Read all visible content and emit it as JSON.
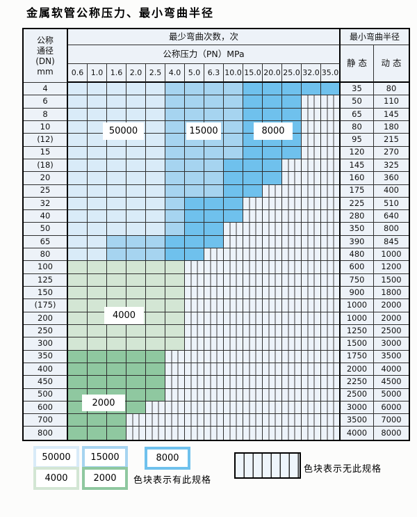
{
  "page_title": "金属软管公称压力、最小弯曲半径",
  "table": {
    "dn_header_lines": [
      "公称",
      "通径",
      "(DN)",
      "mm"
    ],
    "bend_count_header": "最少弯曲次数，次",
    "pn_header": "公称压力（PN）MPa",
    "radius_header": "最小弯曲半径",
    "static_label": "静 态",
    "dynamic_label": "动 态",
    "pn_values": [
      "0.6",
      "1.0",
      "1.6",
      "2.0",
      "2.5",
      "4.0",
      "5.0",
      "6.3",
      "10.0",
      "15.0",
      "20.0",
      "25.0",
      "32.0",
      "35.0"
    ],
    "cell_codes": {
      "a": "50000次色块",
      "b": "15000次色块",
      "c": "8000次色块",
      "d": "4000次色块",
      "e": "2000次色块",
      "x": "无此规格"
    },
    "rows": [
      {
        "dn": "4",
        "cells": "aaaaabbbbccccc",
        "static": "35",
        "dynamic": "80"
      },
      {
        "dn": "6",
        "cells": "aaaaabbbbcccxx",
        "static": "50",
        "dynamic": "110"
      },
      {
        "dn": "8",
        "cells": "aaaaabbbbcccxx",
        "static": "65",
        "dynamic": "145"
      },
      {
        "dn": "10",
        "cells": "aaaaabbbbcccxx",
        "static": "80",
        "dynamic": "180"
      },
      {
        "dn": "(12)",
        "cells": "aaaaabbbbcccxx",
        "static": "95",
        "dynamic": "215"
      },
      {
        "dn": "15",
        "cells": "aaaaabbbbcccxx",
        "static": "120",
        "dynamic": "270"
      },
      {
        "dn": "(18)",
        "cells": "aaaaabbbcccxxx",
        "static": "145",
        "dynamic": "325"
      },
      {
        "dn": "20",
        "cells": "aaaaabbbcccxxx",
        "static": "160",
        "dynamic": "360"
      },
      {
        "dn": "25",
        "cells": "aaaaabbbccxxxx",
        "static": "175",
        "dynamic": "400"
      },
      {
        "dn": "32",
        "cells": "aaaaabcccxxxxx",
        "static": "225",
        "dynamic": "510"
      },
      {
        "dn": "40",
        "cells": "aaaaabcccxxxxx",
        "static": "280",
        "dynamic": "640"
      },
      {
        "dn": "50",
        "cells": "aaaaabccxxxxxx",
        "static": "350",
        "dynamic": "800"
      },
      {
        "dn": "65",
        "cells": "aabbbcccxxxxxx",
        "static": "390",
        "dynamic": "845"
      },
      {
        "dn": "80",
        "cells": "aabbbccxxxxxxx",
        "static": "480",
        "dynamic": "1000"
      },
      {
        "dn": "100",
        "cells": "ddddddxxxxxxxx",
        "static": "600",
        "dynamic": "1200"
      },
      {
        "dn": "125",
        "cells": "ddddddxxxxxxxx",
        "static": "750",
        "dynamic": "1500"
      },
      {
        "dn": "150",
        "cells": "ddddddxxxxxxxx",
        "static": "900",
        "dynamic": "1800"
      },
      {
        "dn": "(175)",
        "cells": "ddddddxxxxxxxx",
        "static": "1000",
        "dynamic": "2000"
      },
      {
        "dn": "200",
        "cells": "ddddddxxxxxxxx",
        "static": "1000",
        "dynamic": "2000"
      },
      {
        "dn": "250",
        "cells": "ddddddxxxxxxxx",
        "static": "1250",
        "dynamic": "2500"
      },
      {
        "dn": "300",
        "cells": "ddddddxxxxxxxx",
        "static": "1500",
        "dynamic": "3000"
      },
      {
        "dn": "350",
        "cells": "eeeeexxxxxxxxx",
        "static": "1750",
        "dynamic": "3500"
      },
      {
        "dn": "400",
        "cells": "eeeeexxxxxxxxx",
        "static": "2000",
        "dynamic": "4000"
      },
      {
        "dn": "450",
        "cells": "eeeeexxxxxxxxx",
        "static": "2250",
        "dynamic": "4500"
      },
      {
        "dn": "500",
        "cells": "eeeeexxxxxxxxx",
        "static": "2500",
        "dynamic": "5000"
      },
      {
        "dn": "600",
        "cells": "eeeexxxxxxxxxx",
        "static": "3000",
        "dynamic": "6000"
      },
      {
        "dn": "700",
        "cells": "eeexxxxxxxxxxx",
        "static": "3500",
        "dynamic": "7000"
      },
      {
        "dn": "800",
        "cells": "eeexxxxxxxxxxx",
        "static": "4000",
        "dynamic": "8000"
      }
    ]
  },
  "overlays": {
    "o50000": "50000",
    "o15000": "15000",
    "o8000": "8000",
    "o4000": "4000",
    "o2000": "2000"
  },
  "legend": {
    "swatches": [
      {
        "label": "50000",
        "color": "#d9ebf8"
      },
      {
        "label": "15000",
        "color": "#a6d4f0"
      },
      {
        "label": "8000",
        "color": "#6fc1ed"
      },
      {
        "label": "4000",
        "color": "#d3e6d4"
      },
      {
        "label": "2000",
        "color": "#8fc8a0"
      }
    ],
    "has_spec_text": "色块表示有此规格",
    "no_spec_text": "色块表示无此规格"
  },
  "colors": {
    "cycles_50000": "#d9ebf8",
    "cycles_15000": "#a6d4f0",
    "cycles_8000": "#6fc1ed",
    "cycles_4000": "#d3e6d4",
    "cycles_2000": "#8fc8a0",
    "no_spec_bg": "#edf3fa",
    "hatch_line": "#3e3e3e",
    "table_border": "#000000",
    "plain_cell_bg": "#edf2f8"
  }
}
